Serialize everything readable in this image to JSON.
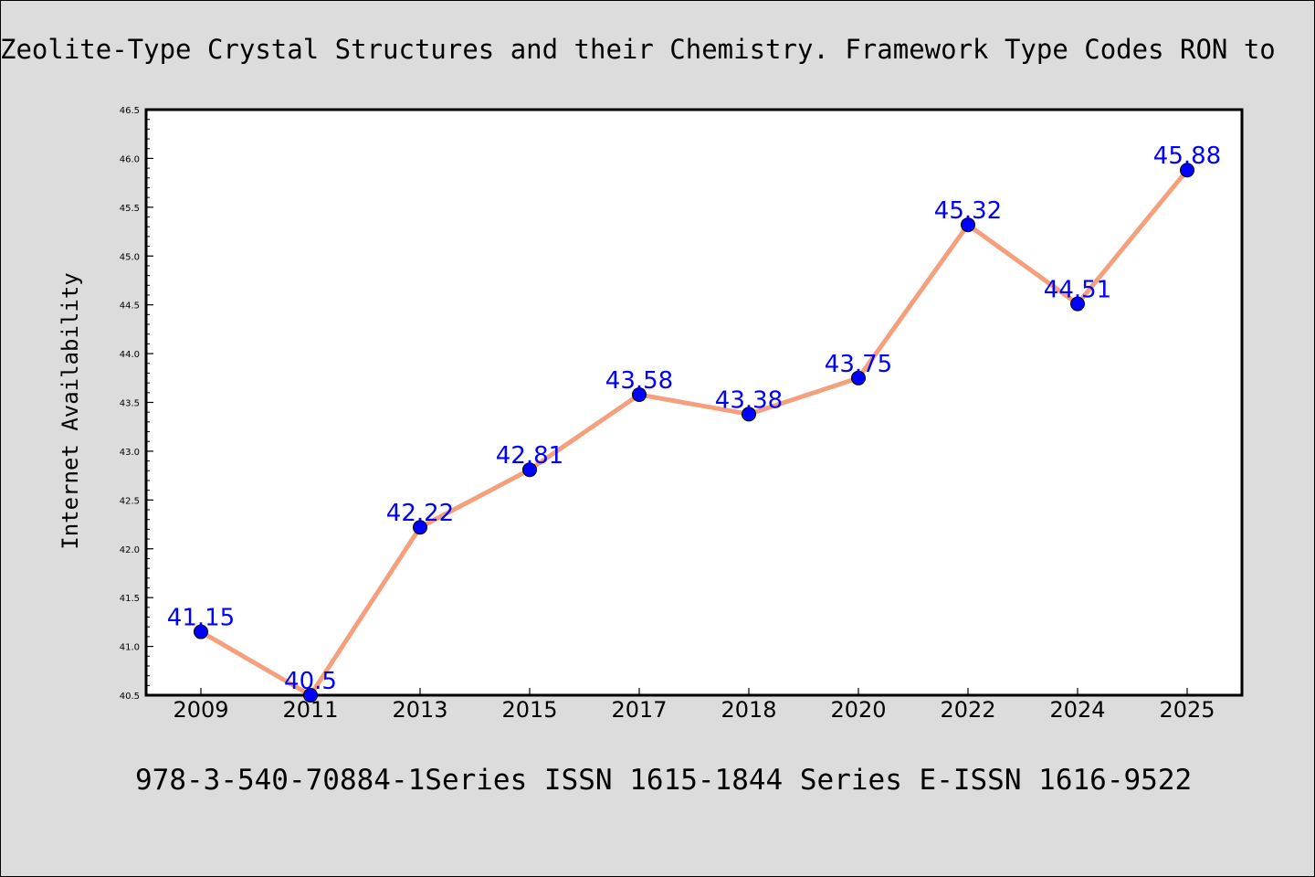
{
  "chart_data": {
    "type": "line",
    "title": "Zeolite-Type Crystal Structures and their Chemistry. Framework Type Codes RON to",
    "caption": "978-3-540-70884-1Series ISSN 1615-1844 Series E-ISSN 1616-9522",
    "xlabel": "",
    "ylabel": "Internet Availability",
    "categories": [
      "2009",
      "2011",
      "2013",
      "2015",
      "2017",
      "2018",
      "2020",
      "2022",
      "2024",
      "2025"
    ],
    "series": [
      {
        "values": [
          41.15,
          40.5,
          42.22,
          42.81,
          43.58,
          43.38,
          43.75,
          45.32,
          44.51,
          45.88
        ],
        "data_labels": [
          "41.15",
          "40.5",
          "42.22",
          "42.81",
          "43.58",
          "43.38",
          "43.75",
          "45.32",
          "44.51",
          "45.88"
        ]
      }
    ],
    "ylim": [
      40.5,
      46.5
    ],
    "yticks": [
      "40.5",
      "41.0",
      "41.5",
      "42.0",
      "42.5",
      "43.0",
      "43.5",
      "44.0",
      "44.5",
      "45.0",
      "45.5",
      "46.0",
      "46.5"
    ],
    "grid": false,
    "legend": "none",
    "colors": {
      "line": "#f4a07c",
      "marker": "#0000ff",
      "data_label": "#0000ff",
      "background": "#dcdcdc",
      "plot_background": "#ffffff"
    }
  }
}
